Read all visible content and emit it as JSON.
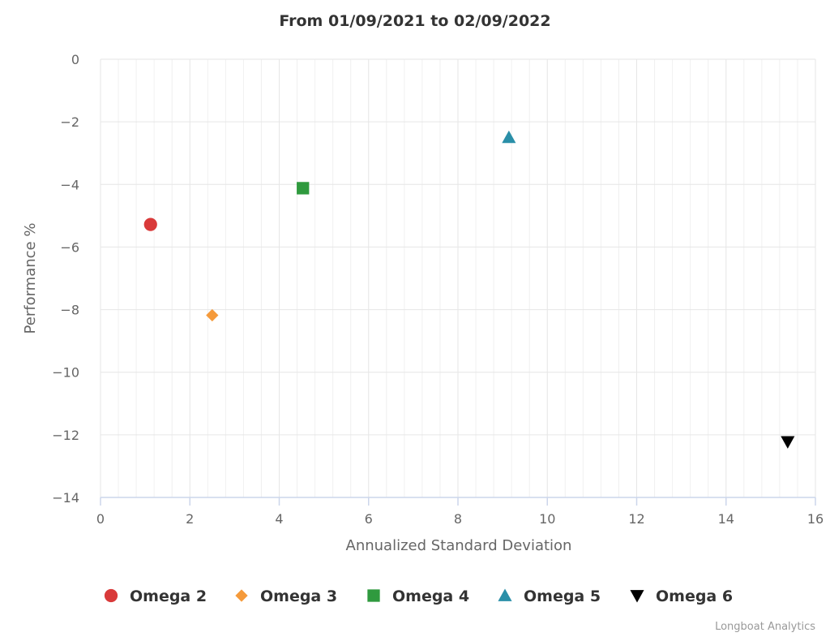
{
  "chart_data": {
    "type": "scatter",
    "title": "From 01/09/2021 to 02/09/2022",
    "xlabel": "Annualized Standard Deviation",
    "ylabel": "Performance %",
    "xlim": [
      0,
      16
    ],
    "ylim": [
      -14,
      0
    ],
    "x_ticks": [
      "0",
      "2",
      "4",
      "6",
      "8",
      "10",
      "12",
      "14",
      "16"
    ],
    "y_ticks": [
      "0",
      "−2",
      "−4",
      "−6",
      "−8",
      "−10",
      "−12",
      "−14"
    ],
    "grid": true,
    "legend_position": "bottom",
    "series": [
      {
        "name": "Omega 2",
        "x": 1.12,
        "y": -5.28,
        "marker": "circle",
        "color": "#d93a3a"
      },
      {
        "name": "Omega 3",
        "x": 2.5,
        "y": -8.18,
        "marker": "diamond",
        "color": "#f59a3b"
      },
      {
        "name": "Omega 4",
        "x": 4.53,
        "y": -4.12,
        "marker": "square",
        "color": "#2f9a3e"
      },
      {
        "name": "Omega 5",
        "x": 9.14,
        "y": -2.5,
        "marker": "triangle-up",
        "color": "#2a8fa8"
      },
      {
        "name": "Omega 6",
        "x": 15.38,
        "y": -12.22,
        "marker": "triangle-down",
        "color": "#000000"
      }
    ]
  },
  "credits": "Longboat Analytics",
  "colors": {
    "grid": "#e6e6e6",
    "axis_line": "#ccd6eb",
    "text_dark": "#333333",
    "text_muted": "#666666",
    "credits": "#999999"
  }
}
